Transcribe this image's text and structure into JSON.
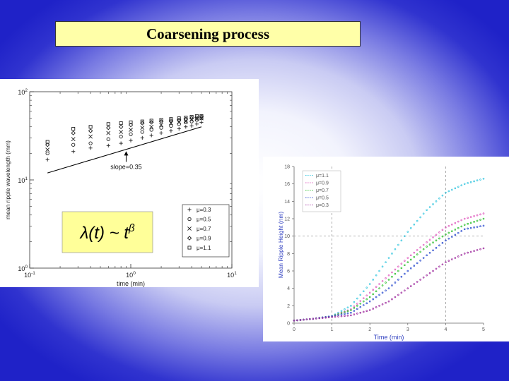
{
  "slide": {
    "title": "Coarsening process"
  },
  "formula": {
    "text": "λ(t) ~ t^β"
  },
  "chart_data": [
    {
      "type": "scatter",
      "scale": "log-log",
      "xlabel": "time (min)",
      "ylabel": "mean ripple wavelength (mm)",
      "xlim": [
        0.1,
        10
      ],
      "ylim": [
        1,
        100
      ],
      "x_ticks": [
        {
          "value": 0.1,
          "base": "10",
          "exp": "-1"
        },
        {
          "value": 1,
          "base": "10",
          "exp": "0"
        },
        {
          "value": 10,
          "base": "10",
          "exp": "1"
        }
      ],
      "y_ticks": [
        {
          "value": 1,
          "base": "10",
          "exp": "0"
        },
        {
          "value": 10,
          "base": "10",
          "exp": "1"
        },
        {
          "value": 100,
          "base": "10",
          "exp": "2"
        }
      ],
      "annotation": {
        "text": "slope=0.35",
        "at_x": 0.9,
        "at_y": 20
      },
      "fit_line": {
        "x": [
          0.15,
          5.0
        ],
        "y": [
          12.0,
          40.0
        ]
      },
      "legend_position": "bottom-right",
      "series": [
        {
          "name": "μ=0.3",
          "marker": "+",
          "x": [
            0.15,
            0.27,
            0.4,
            0.6,
            0.8,
            1.0,
            1.3,
            1.6,
            2.0,
            2.5,
            3.0,
            3.5,
            4.0,
            4.5,
            5.0
          ],
          "y": [
            17,
            21,
            23,
            24.5,
            26,
            28,
            30,
            32,
            34,
            36,
            38,
            40,
            41,
            43,
            45
          ]
        },
        {
          "name": "μ=0.5",
          "marker": "o",
          "x": [
            0.15,
            0.27,
            0.4,
            0.6,
            0.8,
            1.0,
            1.3,
            1.6,
            2.0,
            2.5,
            3.0,
            3.5,
            4.0,
            4.5,
            5.0
          ],
          "y": [
            20,
            25,
            26,
            29,
            31,
            33,
            35,
            37,
            39,
            41,
            43,
            45,
            46,
            48,
            50
          ]
        },
        {
          "name": "μ=0.7",
          "marker": "×",
          "x": [
            0.15,
            0.27,
            0.4,
            0.6,
            0.8,
            1.0,
            1.3,
            1.6,
            2.0,
            2.5,
            3.0,
            3.5,
            4.0,
            4.5,
            5.0
          ],
          "y": [
            22,
            29,
            31,
            34,
            35,
            37,
            39,
            40,
            42,
            44,
            45,
            46,
            48,
            49,
            50
          ]
        },
        {
          "name": "μ=0.9",
          "marker": "◇",
          "x": [
            0.15,
            0.27,
            0.4,
            0.6,
            0.8,
            1.0,
            1.3,
            1.6,
            2.0,
            2.5,
            3.0,
            3.5,
            4.0,
            4.5,
            5.0
          ],
          "y": [
            25,
            34,
            36,
            39,
            40,
            42,
            44,
            45,
            46,
            47,
            48,
            49,
            50,
            51,
            52
          ]
        },
        {
          "name": "μ=1.1",
          "marker": "□",
          "x": [
            0.15,
            0.27,
            0.4,
            0.6,
            0.8,
            1.0,
            1.3,
            1.6,
            2.0,
            2.5,
            3.0,
            3.5,
            4.0,
            4.5,
            5.0
          ],
          "y": [
            27,
            38,
            40,
            43,
            44,
            45,
            46,
            47,
            48,
            49,
            50,
            51,
            52,
            53,
            53
          ]
        }
      ]
    },
    {
      "type": "scatter",
      "xlabel": "Time (min)",
      "ylabel": "Mean Ripple Height (nm)",
      "xlim": [
        0,
        5
      ],
      "ylim": [
        0,
        18
      ],
      "x_ticks": [
        0,
        1,
        2,
        3,
        4,
        5
      ],
      "y_ticks": [
        0,
        2,
        4,
        6,
        8,
        10,
        12,
        14,
        16,
        18
      ],
      "grid": "dashed at x=1, x=4, y=10",
      "legend_position": "top-left",
      "series": [
        {
          "name": "μ=1.1",
          "color": "#3cc8e0",
          "x": [
            0,
            0.5,
            1.0,
            1.5,
            2.0,
            2.5,
            3.0,
            3.5,
            4.0,
            4.5,
            5.0
          ],
          "y": [
            0.3,
            0.5,
            0.8,
            2.0,
            4.5,
            7.5,
            10.5,
            13.0,
            15.0,
            16.0,
            16.6
          ]
        },
        {
          "name": "μ=0.9",
          "color": "#e060c0",
          "x": [
            0,
            0.5,
            1.0,
            1.5,
            2.0,
            2.5,
            3.0,
            3.5,
            4.0,
            4.5,
            5.0
          ],
          "y": [
            0.3,
            0.5,
            0.8,
            1.6,
            3.5,
            5.5,
            7.5,
            9.3,
            11.0,
            12.0,
            12.6
          ]
        },
        {
          "name": "μ=0.7",
          "color": "#30c030",
          "x": [
            0,
            0.5,
            1.0,
            1.5,
            2.0,
            2.5,
            3.0,
            3.5,
            4.0,
            4.5,
            5.0
          ],
          "y": [
            0.3,
            0.5,
            0.8,
            1.5,
            3.0,
            5.0,
            7.0,
            8.8,
            10.2,
            11.3,
            12.0
          ]
        },
        {
          "name": "μ=0.5",
          "color": "#3050d0",
          "x": [
            0,
            0.5,
            1.0,
            1.5,
            2.0,
            2.5,
            3.0,
            3.5,
            4.0,
            4.5,
            5.0
          ],
          "y": [
            0.3,
            0.5,
            0.8,
            1.2,
            2.5,
            4.0,
            6.0,
            7.8,
            9.5,
            10.8,
            11.2
          ]
        },
        {
          "name": "μ=0.3",
          "color": "#a030a0",
          "x": [
            0,
            0.5,
            1.0,
            1.5,
            2.0,
            2.5,
            3.0,
            3.5,
            4.0,
            4.5,
            5.0
          ],
          "y": [
            0.3,
            0.5,
            0.7,
            0.9,
            1.5,
            2.5,
            4.0,
            5.5,
            7.0,
            8.0,
            8.6
          ]
        }
      ]
    }
  ]
}
